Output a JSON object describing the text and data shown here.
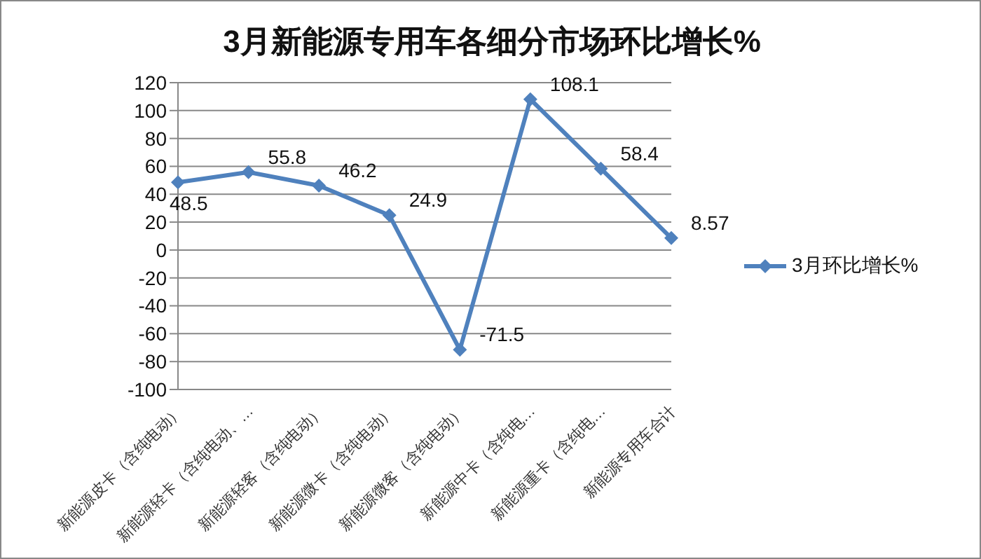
{
  "chart_data": {
    "type": "line",
    "title": "3月新能源专用车各细分市场环比增长%",
    "categories": [
      "新能源皮卡（含纯电动）",
      "新能源轻卡（含纯电动、…",
      "新能源轻客（含纯电动）",
      "新能源微卡（含纯电动）",
      "新能源微客（含纯电动）",
      "新能源中卡（含纯电…",
      "新能源重卡（含纯电…",
      "新能源专用车合计"
    ],
    "series": [
      {
        "name": "3月环比增长%",
        "color": "#4f81bd",
        "values": [
          48.5,
          55.8,
          46.2,
          24.9,
          -71.5,
          108.1,
          58.4,
          8.57
        ]
      }
    ],
    "ylim": [
      -100,
      120
    ],
    "yticks": [
      -100,
      -80,
      -60,
      -40,
      -20,
      0,
      20,
      40,
      60,
      80,
      100,
      120
    ],
    "grid": "y",
    "legend": "right",
    "marker": "diamond",
    "line_style": "solid",
    "data_labels": true
  }
}
